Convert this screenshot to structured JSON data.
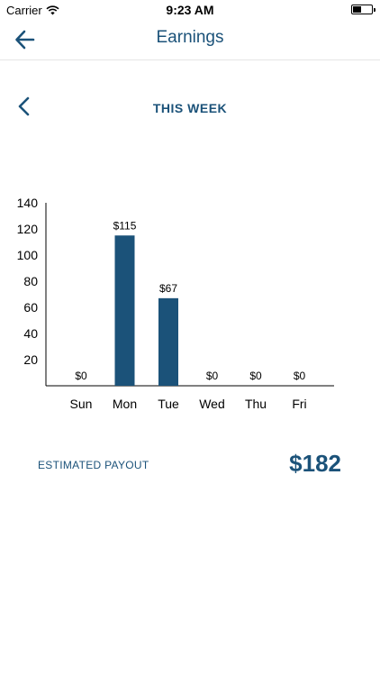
{
  "status_bar": {
    "carrier": "Carrier",
    "time": "9:23 AM"
  },
  "nav": {
    "title": "Earnings",
    "back_icon": "arrow-left-icon"
  },
  "period": {
    "title": "THIS WEEK",
    "prev_icon": "chevron-left-icon"
  },
  "colors": {
    "accent": "#1b5279"
  },
  "chart_data": {
    "type": "bar",
    "categories": [
      "Sun",
      "Mon",
      "Tue",
      "Wed",
      "Thu",
      "Fri"
    ],
    "values": [
      0,
      115,
      67,
      0,
      0,
      0
    ],
    "data_labels": [
      "$0",
      "$115",
      "$67",
      "$0",
      "$0",
      "$0"
    ],
    "yticks": [
      20,
      40,
      60,
      80,
      100,
      120,
      140
    ],
    "ylim": [
      0,
      140
    ],
    "grid": false,
    "legend": "none",
    "title": "",
    "xlabel": "",
    "ylabel": ""
  },
  "payout": {
    "label": "ESTIMATED PAYOUT",
    "value": "$182"
  }
}
